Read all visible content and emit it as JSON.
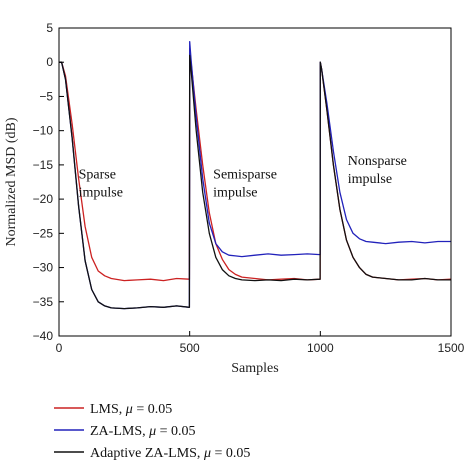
{
  "chart_data": {
    "type": "line",
    "title": "",
    "xlabel": "Samples",
    "ylabel": "Normalized MSD (dB)",
    "xlim": [
      0,
      1500
    ],
    "ylim": [
      -40,
      5
    ],
    "xticks": [
      0,
      500,
      1000,
      1500
    ],
    "yticks": [
      5,
      0,
      -5,
      -10,
      -15,
      -20,
      -25,
      -30,
      -35,
      -40
    ],
    "grid": false,
    "legend_position": "bottom-left, below plot",
    "annotations": [
      {
        "lines": [
          "Sparse",
          "impulse"
        ],
        "x": 75,
        "y": -17
      },
      {
        "lines": [
          "Semisparse",
          "impulse"
        ],
        "x": 590,
        "y": -17
      },
      {
        "lines": [
          "Nonsparse",
          "impulse"
        ],
        "x": 1105,
        "y": -15
      }
    ],
    "series": [
      {
        "name_prefix": "LMS, ",
        "name_mu": "μ",
        "name_suffix": " = 0.05",
        "color": "#cc2222",
        "x": [
          0,
          10,
          25,
          50,
          75,
          100,
          125,
          150,
          175,
          200,
          250,
          300,
          350,
          400,
          450,
          499,
          500,
          505,
          525,
          550,
          575,
          600,
          625,
          650,
          675,
          700,
          750,
          800,
          850,
          900,
          950,
          999,
          1000,
          1005,
          1025,
          1050,
          1075,
          1100,
          1125,
          1150,
          1175,
          1200,
          1250,
          1300,
          1350,
          1400,
          1450,
          1500
        ],
        "values": [
          0,
          0,
          -2,
          -9,
          -17,
          -24,
          -28.5,
          -30.5,
          -31.2,
          -31.6,
          -31.9,
          -31.8,
          -31.7,
          -31.9,
          -31.6,
          -31.7,
          2,
          0,
          -7,
          -15,
          -22,
          -26.5,
          -28.8,
          -30.3,
          -31,
          -31.4,
          -31.6,
          -31.8,
          -31.7,
          -31.6,
          -31.8,
          -31.7,
          0,
          -1,
          -7,
          -15,
          -21.5,
          -26,
          -28.5,
          -30,
          -31,
          -31.4,
          -31.6,
          -31.8,
          -31.7,
          -31.6,
          -31.8,
          -31.7
        ]
      },
      {
        "name_prefix": "ZA-LMS, ",
        "name_mu": "μ",
        "name_suffix": " = 0.05",
        "color": "#2222bb",
        "x": [
          0,
          10,
          25,
          50,
          75,
          100,
          125,
          150,
          175,
          200,
          250,
          300,
          350,
          400,
          450,
          499,
          500,
          505,
          525,
          550,
          575,
          600,
          625,
          650,
          675,
          700,
          750,
          800,
          850,
          900,
          950,
          999,
          1000,
          1005,
          1025,
          1050,
          1075,
          1100,
          1125,
          1150,
          1175,
          1200,
          1250,
          1300,
          1350,
          1400,
          1450,
          1500
        ],
        "values": [
          0,
          0,
          -2.5,
          -11,
          -21,
          -29,
          -33.2,
          -35,
          -35.6,
          -35.9,
          -36,
          -35.9,
          -35.7,
          -35.8,
          -35.6,
          -35.8,
          3,
          0.5,
          -8,
          -17,
          -23.5,
          -26.5,
          -27.7,
          -28.2,
          -28.3,
          -28.4,
          -28.2,
          -28.0,
          -28.2,
          -28.1,
          -28.0,
          -28.1,
          0,
          -1,
          -6,
          -13,
          -19,
          -23,
          -25,
          -25.8,
          -26.2,
          -26.3,
          -26.5,
          -26.3,
          -26.2,
          -26.4,
          -26.2,
          -26.2
        ]
      },
      {
        "name_prefix": "Adaptive ZA-LMS, ",
        "name_mu": "μ",
        "name_suffix": " = 0.05",
        "color": "#111111",
        "x": [
          0,
          10,
          25,
          50,
          75,
          100,
          125,
          150,
          175,
          200,
          250,
          300,
          350,
          400,
          450,
          499,
          500,
          505,
          525,
          550,
          575,
          600,
          625,
          650,
          675,
          700,
          750,
          800,
          850,
          900,
          950,
          999,
          1000,
          1005,
          1025,
          1050,
          1075,
          1100,
          1125,
          1150,
          1175,
          1200,
          1250,
          1300,
          1350,
          1400,
          1450,
          1500
        ],
        "values": [
          0,
          0,
          -2.5,
          -11,
          -21,
          -29,
          -33.2,
          -35,
          -35.6,
          -35.9,
          -36,
          -35.9,
          -35.7,
          -35.8,
          -35.6,
          -35.8,
          1,
          -1,
          -10,
          -19,
          -25,
          -28.5,
          -30.3,
          -31.2,
          -31.6,
          -31.8,
          -31.9,
          -31.8,
          -31.9,
          -31.7,
          -31.8,
          -31.7,
          0,
          -1,
          -7,
          -15,
          -21.5,
          -26,
          -28.5,
          -30,
          -31,
          -31.4,
          -31.6,
          -31.8,
          -31.8,
          -31.6,
          -31.8,
          -31.8
        ]
      }
    ]
  }
}
